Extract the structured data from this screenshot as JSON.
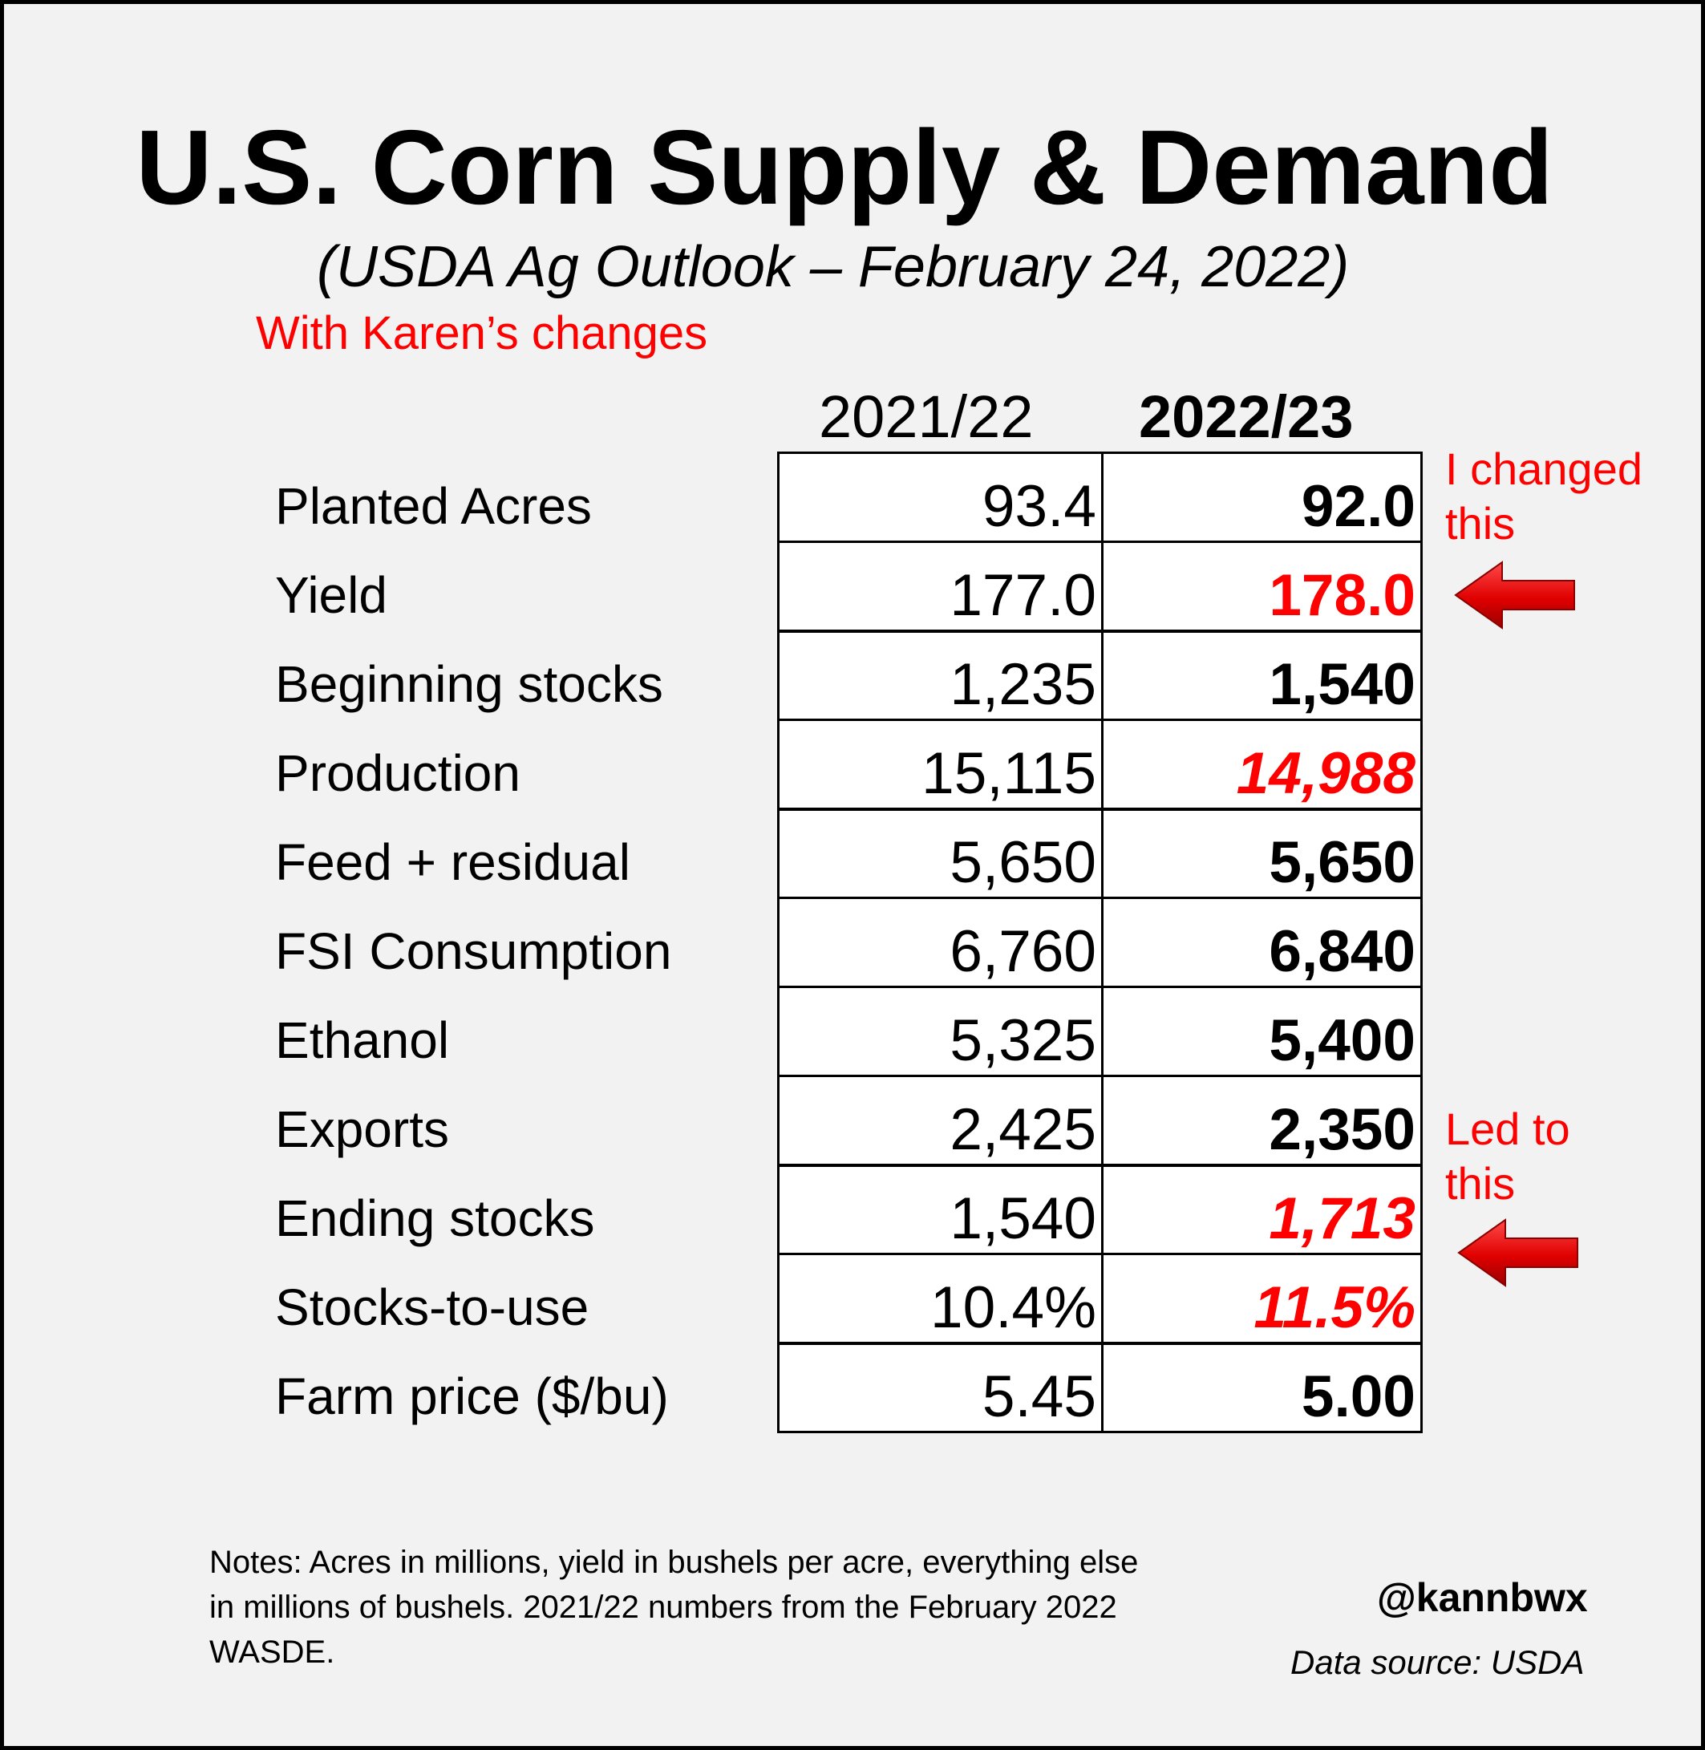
{
  "title": "U.S. Corn Supply & Demand",
  "subtitle": "(USDA Ag Outlook – February 24, 2022)",
  "annotation_main": "With Karen’s changes",
  "chart_data": {
    "type": "table",
    "columns": [
      "2021/22",
      "2022/23"
    ],
    "rows": [
      {
        "label": "Planted Acres",
        "values": [
          "93.4",
          "92.0"
        ],
        "changed": false,
        "italic": false
      },
      {
        "label": "Yield",
        "values": [
          "177.0",
          "178.0"
        ],
        "changed": true,
        "italic": false
      },
      {
        "label": "Beginning stocks",
        "values": [
          "1,235",
          "1,540"
        ],
        "changed": false,
        "italic": false
      },
      {
        "label": "Production",
        "values": [
          "15,115",
          "14,988"
        ],
        "changed": true,
        "italic": true
      },
      {
        "label": "Feed + residual",
        "values": [
          "5,650",
          "5,650"
        ],
        "changed": false,
        "italic": false
      },
      {
        "label": "FSI Consumption",
        "values": [
          "6,760",
          "6,840"
        ],
        "changed": false,
        "italic": false
      },
      {
        "label": "Ethanol",
        "values": [
          "5,325",
          "5,400"
        ],
        "changed": false,
        "italic": false
      },
      {
        "label": "Exports",
        "values": [
          "2,425",
          "2,350"
        ],
        "changed": false,
        "italic": false
      },
      {
        "label": "Ending stocks",
        "values": [
          "1,540",
          "1,713"
        ],
        "changed": true,
        "italic": true
      },
      {
        "label": "Stocks-to-use",
        "values": [
          "10.4%",
          "11.5%"
        ],
        "changed": true,
        "italic": true
      },
      {
        "label": "Farm price ($/bu)",
        "values": [
          "5.45",
          "5.00"
        ],
        "changed": false,
        "italic": false
      }
    ],
    "highlight_color": "#ff0000"
  },
  "callouts": {
    "changed": "I changed this",
    "changed_line1": "I changed",
    "changed_line2": "this",
    "led": "Led to this",
    "led_line1": "Led to",
    "led_line2": "this"
  },
  "notes": "Notes: Acres in millions, yield in bushels per acre, everything else in millions of bushels. 2021/22 numbers from the February 2022 WASDE.",
  "handle": "@kannbwx",
  "source": "Data source: USDA",
  "icons": {
    "arrow": "left-arrow-icon"
  }
}
